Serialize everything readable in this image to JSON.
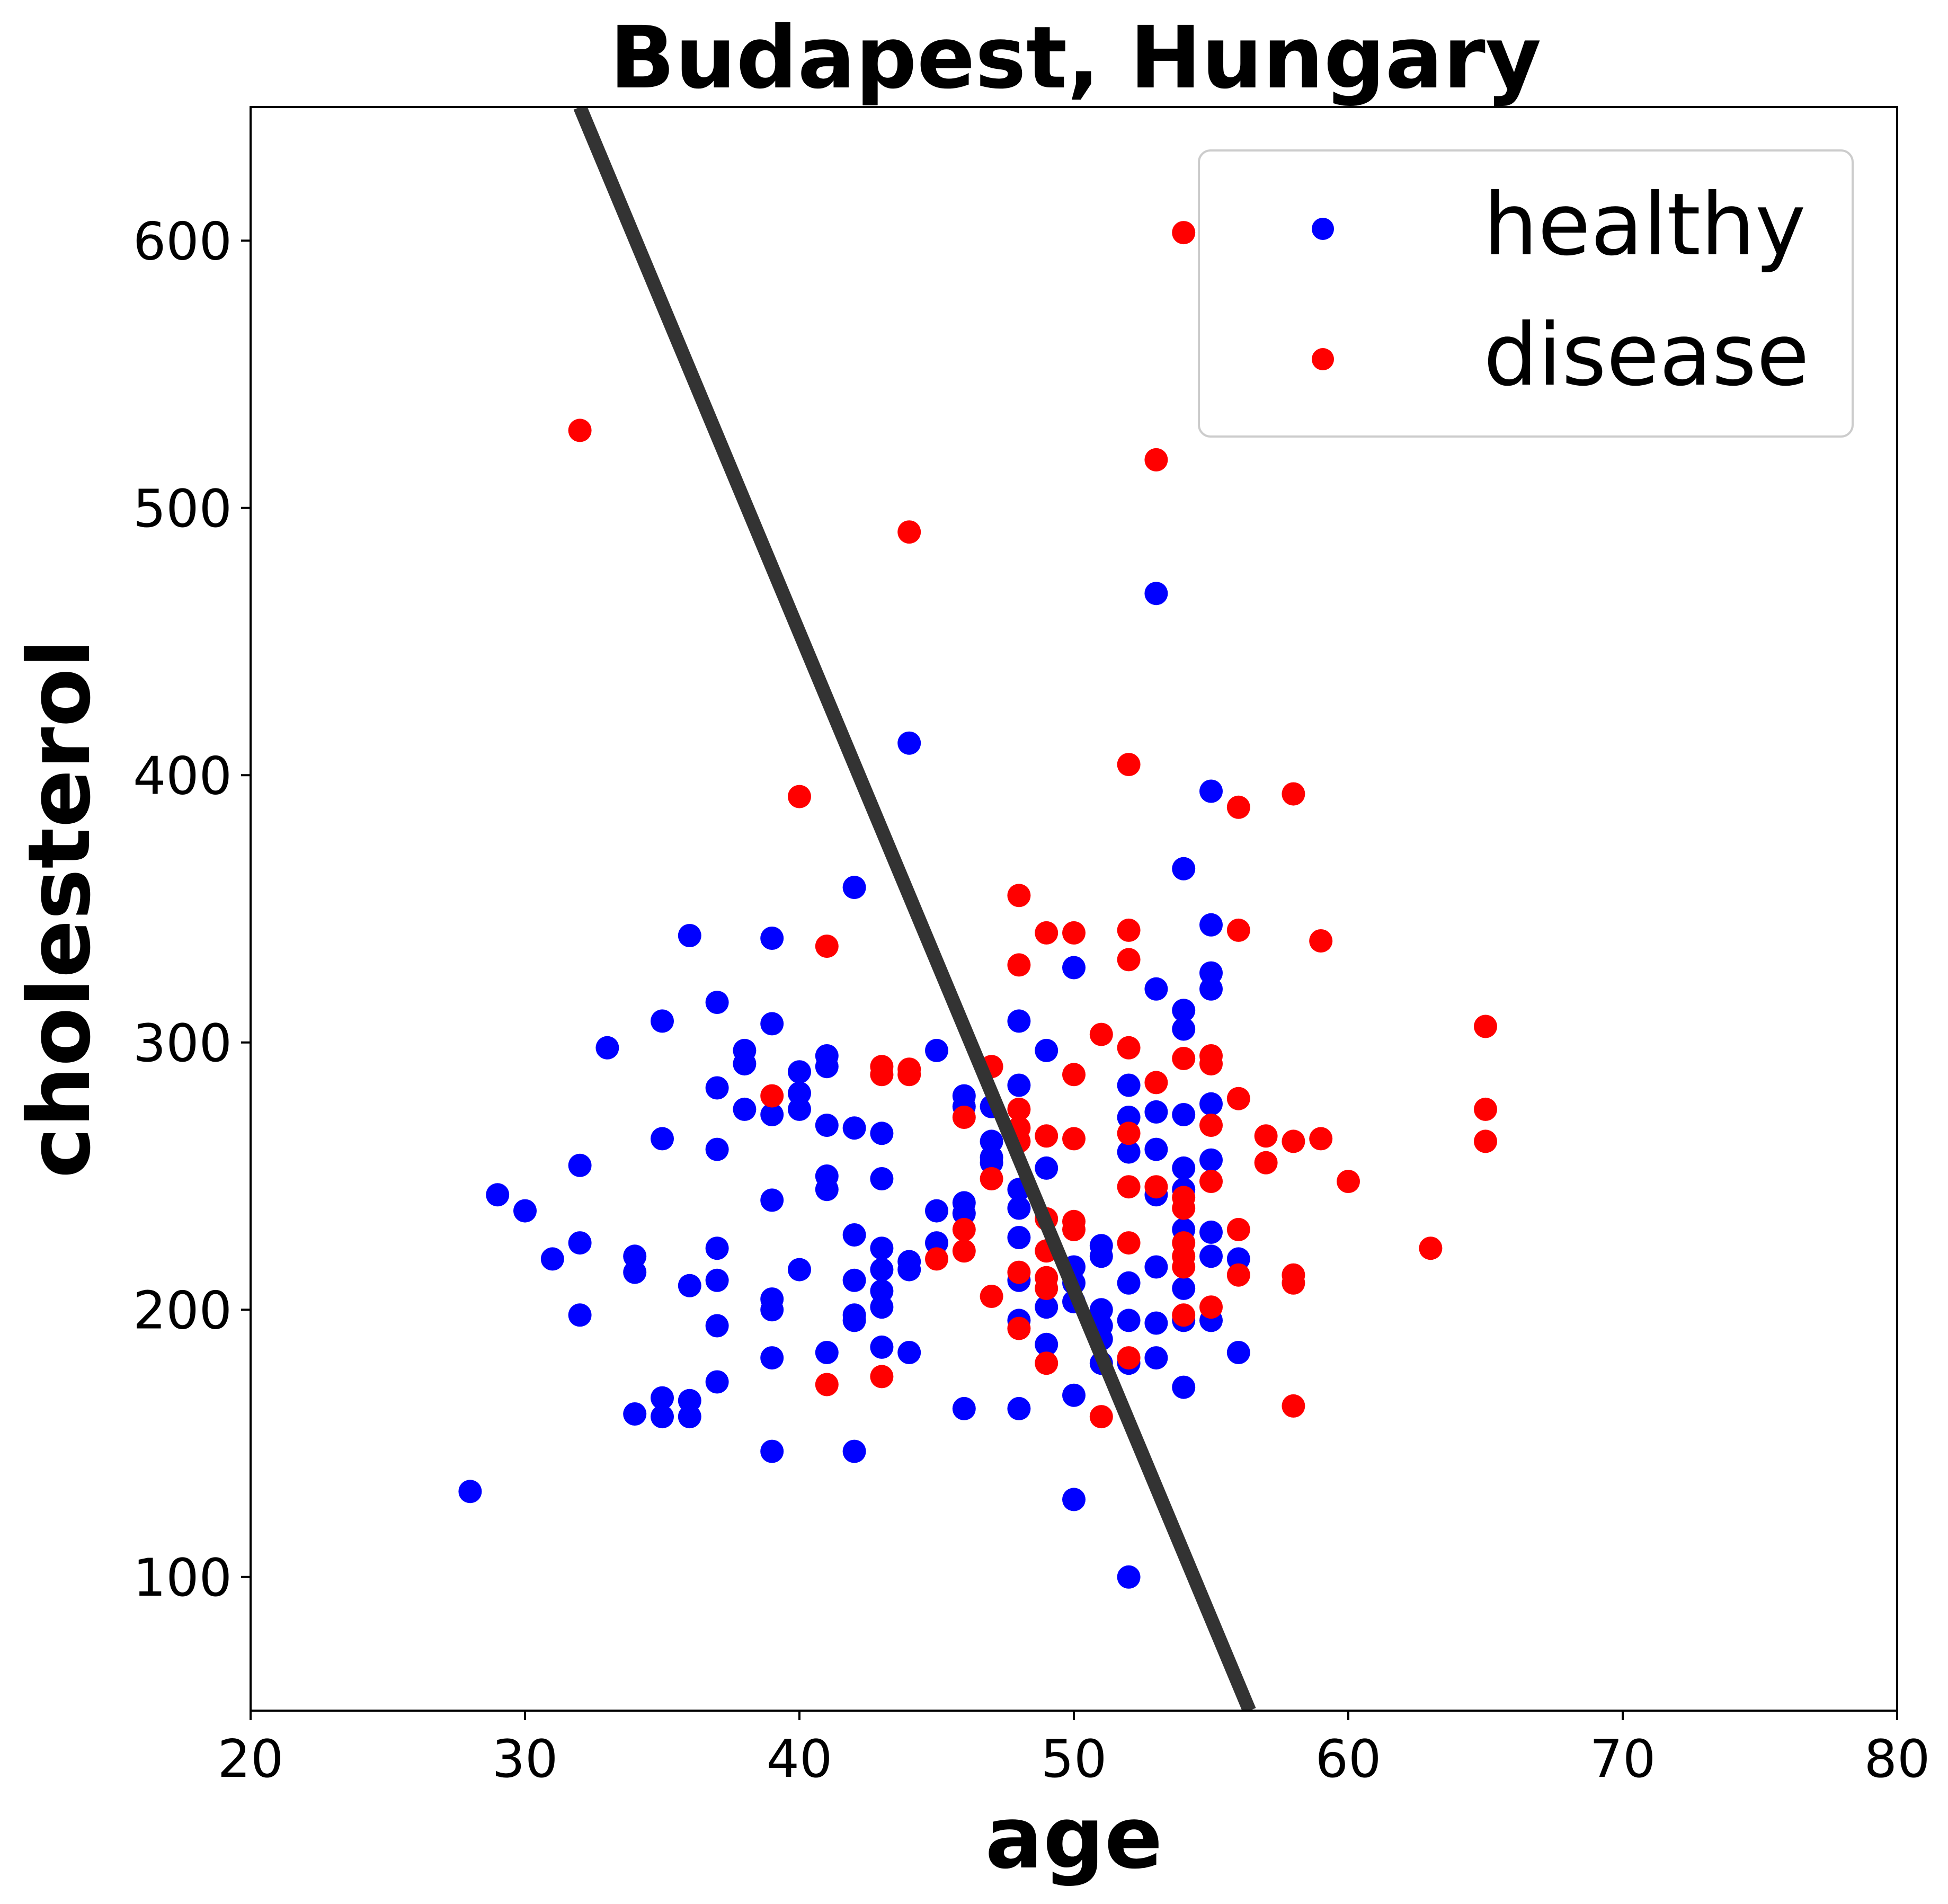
{
  "chart_data": {
    "type": "scatter",
    "title": "Budapest, Hungary",
    "xlabel": "age",
    "ylabel": "cholesterol",
    "xlim": [
      20,
      80
    ],
    "ylim": [
      50,
      650
    ],
    "xticks": [
      20,
      30,
      40,
      50,
      60,
      70,
      80
    ],
    "yticks": [
      100,
      200,
      300,
      400,
      500,
      600
    ],
    "grid": false,
    "legend_position": "top-right",
    "series": [
      {
        "name": "healthy",
        "color": "#0000ff",
        "points": [
          [
            28,
            132
          ],
          [
            29,
            243
          ],
          [
            30,
            237
          ],
          [
            31,
            219
          ],
          [
            32,
            254
          ],
          [
            32,
            225
          ],
          [
            32,
            198
          ],
          [
            33,
            298
          ],
          [
            34,
            220
          ],
          [
            34,
            214
          ],
          [
            34,
            161
          ],
          [
            35,
            308
          ],
          [
            35,
            264
          ],
          [
            35,
            167
          ],
          [
            35,
            160
          ],
          [
            36,
            340
          ],
          [
            36,
            209
          ],
          [
            36,
            166
          ],
          [
            36,
            160
          ],
          [
            37,
            315
          ],
          [
            37,
            283
          ],
          [
            37,
            260
          ],
          [
            37,
            223
          ],
          [
            37,
            211
          ],
          [
            37,
            194
          ],
          [
            37,
            173
          ],
          [
            38,
            297
          ],
          [
            38,
            292
          ],
          [
            38,
            275
          ],
          [
            39,
            339
          ],
          [
            39,
            307
          ],
          [
            39,
            273
          ],
          [
            39,
            241
          ],
          [
            39,
            204
          ],
          [
            39,
            200
          ],
          [
            39,
            182
          ],
          [
            39,
            147
          ],
          [
            40,
            289
          ],
          [
            40,
            281
          ],
          [
            40,
            275
          ],
          [
            40,
            215
          ],
          [
            41,
            295
          ],
          [
            41,
            291
          ],
          [
            41,
            269
          ],
          [
            41,
            250
          ],
          [
            41,
            245
          ],
          [
            41,
            184
          ],
          [
            42,
            358
          ],
          [
            42,
            268
          ],
          [
            42,
            228
          ],
          [
            42,
            211
          ],
          [
            42,
            198
          ],
          [
            42,
            196
          ],
          [
            42,
            147
          ],
          [
            43,
            266
          ],
          [
            43,
            249
          ],
          [
            43,
            223
          ],
          [
            43,
            215
          ],
          [
            43,
            207
          ],
          [
            43,
            201
          ],
          [
            43,
            186
          ],
          [
            44,
            412
          ],
          [
            44,
            218
          ],
          [
            44,
            215
          ],
          [
            44,
            184
          ],
          [
            45,
            297
          ],
          [
            45,
            237
          ],
          [
            45,
            225
          ],
          [
            46,
            280
          ],
          [
            46,
            276
          ],
          [
            46,
            240
          ],
          [
            46,
            236
          ],
          [
            46,
            163
          ],
          [
            47,
            276
          ],
          [
            47,
            263
          ],
          [
            47,
            257
          ],
          [
            47,
            255
          ],
          [
            48,
            308
          ],
          [
            48,
            284
          ],
          [
            48,
            245
          ],
          [
            48,
            238
          ],
          [
            48,
            227
          ],
          [
            48,
            211
          ],
          [
            48,
            196
          ],
          [
            48,
            163
          ],
          [
            49,
            297
          ],
          [
            49,
            253
          ],
          [
            49,
            201
          ],
          [
            49,
            187
          ],
          [
            50,
            328
          ],
          [
            50,
            216
          ],
          [
            50,
            210
          ],
          [
            50,
            203
          ],
          [
            50,
            168
          ],
          [
            50,
            129
          ],
          [
            51,
            224
          ],
          [
            51,
            220
          ],
          [
            51,
            200
          ],
          [
            51,
            194
          ],
          [
            51,
            189
          ],
          [
            51,
            180
          ],
          [
            52,
            284
          ],
          [
            52,
            272
          ],
          [
            52,
            259
          ],
          [
            52,
            210
          ],
          [
            52,
            196
          ],
          [
            52,
            180
          ],
          [
            52,
            100
          ],
          [
            53,
            468
          ],
          [
            53,
            320
          ],
          [
            53,
            274
          ],
          [
            53,
            260
          ],
          [
            53,
            243
          ],
          [
            53,
            216
          ],
          [
            53,
            195
          ],
          [
            53,
            182
          ],
          [
            54,
            365
          ],
          [
            54,
            312
          ],
          [
            54,
            305
          ],
          [
            54,
            273
          ],
          [
            54,
            253
          ],
          [
            54,
            245
          ],
          [
            54,
            230
          ],
          [
            54,
            208
          ],
          [
            54,
            196
          ],
          [
            54,
            171
          ],
          [
            55,
            394
          ],
          [
            55,
            344
          ],
          [
            55,
            326
          ],
          [
            55,
            320
          ],
          [
            55,
            277
          ],
          [
            55,
            256
          ],
          [
            55,
            229
          ],
          [
            55,
            220
          ],
          [
            55,
            196
          ],
          [
            56,
            219
          ],
          [
            56,
            184
          ]
        ]
      },
      {
        "name": "disease",
        "color": "#ff0000",
        "points": [
          [
            32,
            529
          ],
          [
            39,
            280
          ],
          [
            40,
            392
          ],
          [
            41,
            336
          ],
          [
            41,
            172
          ],
          [
            43,
            291
          ],
          [
            43,
            288
          ],
          [
            43,
            175
          ],
          [
            44,
            491
          ],
          [
            44,
            290
          ],
          [
            44,
            288
          ],
          [
            45,
            219
          ],
          [
            46,
            272
          ],
          [
            46,
            230
          ],
          [
            46,
            222
          ],
          [
            47,
            291
          ],
          [
            47,
            249
          ],
          [
            47,
            205
          ],
          [
            48,
            355
          ],
          [
            48,
            329
          ],
          [
            48,
            275
          ],
          [
            48,
            268
          ],
          [
            48,
            263
          ],
          [
            48,
            214
          ],
          [
            48,
            193
          ],
          [
            49,
            341
          ],
          [
            49,
            265
          ],
          [
            49,
            234
          ],
          [
            49,
            222
          ],
          [
            49,
            212
          ],
          [
            49,
            208
          ],
          [
            49,
            180
          ],
          [
            50,
            341
          ],
          [
            50,
            288
          ],
          [
            50,
            264
          ],
          [
            50,
            233
          ],
          [
            50,
            230
          ],
          [
            51,
            303
          ],
          [
            51,
            160
          ],
          [
            52,
            404
          ],
          [
            52,
            342
          ],
          [
            52,
            331
          ],
          [
            52,
            298
          ],
          [
            52,
            266
          ],
          [
            52,
            246
          ],
          [
            52,
            225
          ],
          [
            52,
            182
          ],
          [
            53,
            518
          ],
          [
            53,
            285
          ],
          [
            53,
            246
          ],
          [
            54,
            603
          ],
          [
            54,
            294
          ],
          [
            54,
            242
          ],
          [
            54,
            238
          ],
          [
            54,
            225
          ],
          [
            54,
            220
          ],
          [
            54,
            216
          ],
          [
            54,
            198
          ],
          [
            55,
            295
          ],
          [
            55,
            292
          ],
          [
            55,
            269
          ],
          [
            55,
            248
          ],
          [
            55,
            201
          ],
          [
            56,
            388
          ],
          [
            56,
            342
          ],
          [
            56,
            279
          ],
          [
            56,
            230
          ],
          [
            56,
            213
          ],
          [
            57,
            265
          ],
          [
            57,
            255
          ],
          [
            58,
            393
          ],
          [
            58,
            263
          ],
          [
            58,
            213
          ],
          [
            58,
            210
          ],
          [
            58,
            164
          ],
          [
            59,
            338
          ],
          [
            59,
            264
          ],
          [
            60,
            248
          ],
          [
            63,
            223
          ],
          [
            65,
            306
          ],
          [
            65,
            275
          ],
          [
            65,
            263
          ]
        ]
      }
    ],
    "line": {
      "color": "#333333",
      "points": [
        [
          32,
          650
        ],
        [
          56.4,
          50
        ]
      ]
    }
  }
}
